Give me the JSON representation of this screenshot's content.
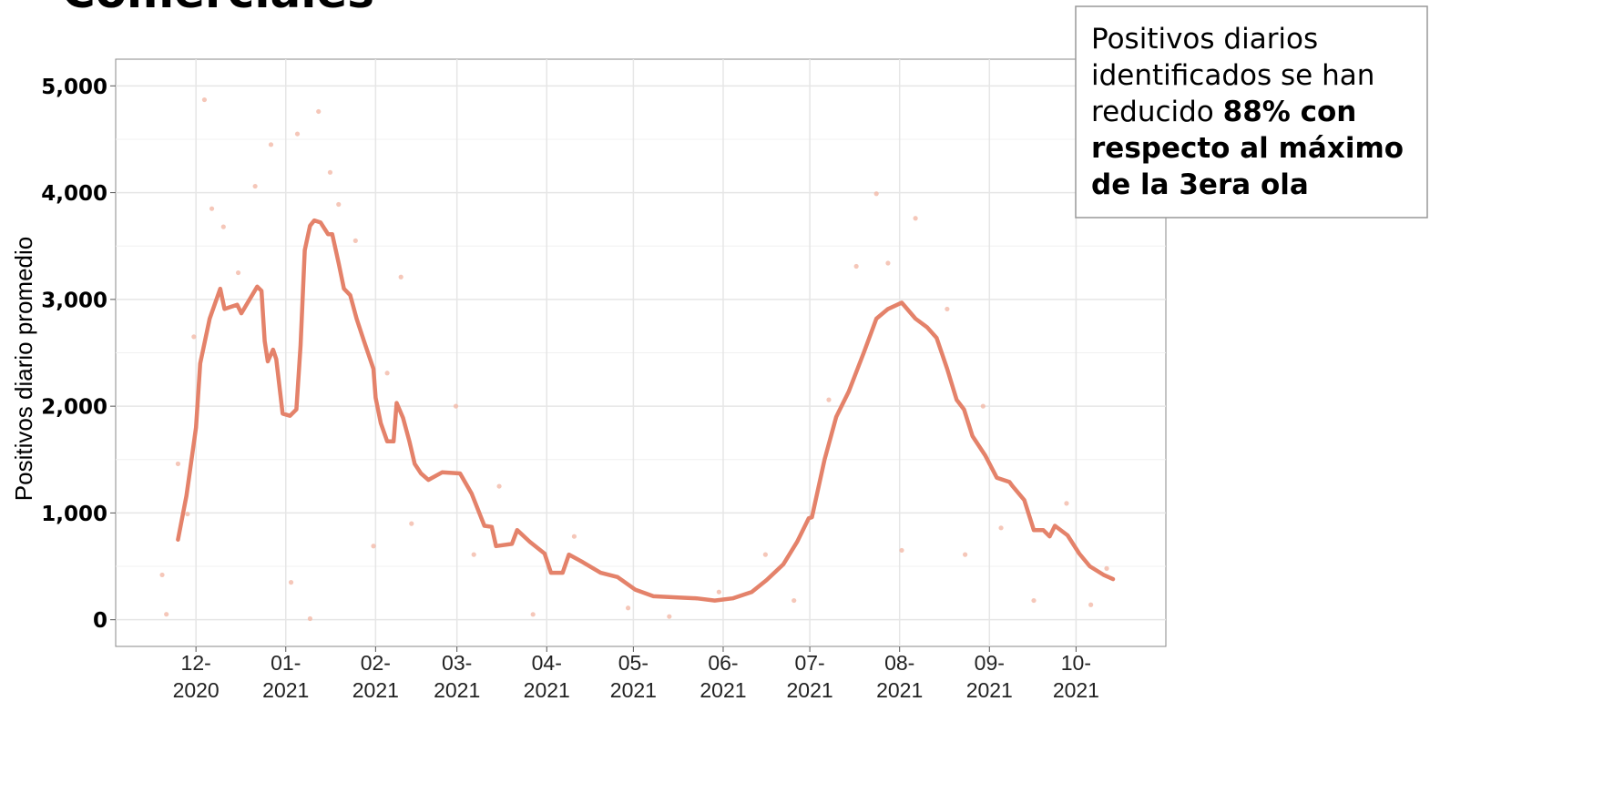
{
  "chart_data": {
    "type": "line",
    "title": "Comerciales",
    "ylabel": "Positivos diario promedio",
    "annotation_lines": [
      [
        {
          "text": "Positivos diarios",
          "bold": false
        }
      ],
      [
        {
          "text": "identificados se han",
          "bold": false
        }
      ],
      [
        {
          "text": "reducido ",
          "bold": false
        },
        {
          "text": "88% con",
          "bold": true
        }
      ],
      [
        {
          "text": "respecto al máximo",
          "bold": true
        }
      ],
      [
        {
          "text": "de la 3era ola",
          "bold": true
        }
      ]
    ],
    "xlim": [
      2020.839,
      2021.833
    ],
    "xticks": [
      {
        "value": 2020.915,
        "label": [
          "12-",
          "2020"
        ]
      },
      {
        "value": 2021.0,
        "label": [
          "01-",
          "2021"
        ]
      },
      {
        "value": 2021.085,
        "label": [
          "02-",
          "2021"
        ]
      },
      {
        "value": 2021.162,
        "label": [
          "03-",
          "2021"
        ]
      },
      {
        "value": 2021.247,
        "label": [
          "04-",
          "2021"
        ]
      },
      {
        "value": 2021.329,
        "label": [
          "05-",
          "2021"
        ]
      },
      {
        "value": 2021.414,
        "label": [
          "06-",
          "2021"
        ]
      },
      {
        "value": 2021.496,
        "label": [
          "07-",
          "2021"
        ]
      },
      {
        "value": 2021.581,
        "label": [
          "08-",
          "2021"
        ]
      },
      {
        "value": 2021.666,
        "label": [
          "09-",
          "2021"
        ]
      },
      {
        "value": 2021.748,
        "label": [
          "10-",
          "2021"
        ]
      }
    ],
    "ylim": [
      -250,
      5250
    ],
    "yticks": [
      0,
      {
        "value": 1000,
        "label": "1,000"
      },
      {
        "value": 2000,
        "label": "2,000"
      },
      {
        "value": 3000,
        "label": "3,000"
      },
      {
        "value": 4000,
        "label": "4,000"
      },
      {
        "value": 5000,
        "label": "5,000"
      }
    ],
    "yminorticks": [
      500,
      1500,
      2500,
      3500,
      4500
    ],
    "grid": true,
    "series": [
      {
        "type": "line",
        "color": "#e4826a",
        "x": [
          2020.898,
          2020.906,
          2020.915,
          2020.919,
          2020.928,
          2020.938,
          2020.942,
          2020.954,
          2020.958,
          2020.973,
          2020.977,
          2020.98,
          2020.983,
          2020.988,
          2020.991,
          2020.997,
          2021.004,
          2021.01,
          2021.014,
          2021.018,
          2021.023,
          2021.027,
          2021.033,
          2021.04,
          2021.044,
          2021.05,
          2021.055,
          2021.061,
          2021.067,
          2021.074,
          2021.083,
          2021.085,
          2021.09,
          2021.096,
          2021.102,
          2021.105,
          2021.111,
          2021.117,
          2021.122,
          2021.128,
          2021.135,
          2021.148,
          2021.165,
          2021.176,
          2021.188,
          2021.195,
          2021.199,
          2021.214,
          2021.219,
          2021.231,
          2021.245,
          2021.251,
          2021.262,
          2021.268,
          2021.281,
          2021.298,
          2021.314,
          2021.331,
          2021.348,
          2021.369,
          2021.389,
          2021.406,
          2021.423,
          2021.441,
          2021.455,
          2021.471,
          2021.484,
          2021.495,
          2021.498,
          2021.51,
          2021.521,
          2021.533,
          2021.547,
          2021.559,
          2021.57,
          2021.583,
          2021.596,
          2021.607,
          2021.616,
          2021.626,
          2021.635,
          2021.642,
          2021.65,
          2021.662,
          2021.673,
          2021.685,
          2021.688,
          2021.699,
          2021.708,
          2021.717,
          2021.723,
          2021.728,
          2021.74,
          2021.751,
          2021.761,
          2021.774,
          2021.783
        ],
        "values": [
          750,
          1160,
          1800,
          2400,
          2820,
          3100,
          2910,
          2950,
          2870,
          3120,
          3080,
          2610,
          2420,
          2530,
          2440,
          1930,
          1910,
          1970,
          2570,
          3460,
          3690,
          3740,
          3720,
          3610,
          3610,
          3340,
          3100,
          3040,
          2820,
          2610,
          2350,
          2080,
          1840,
          1670,
          1670,
          2030,
          1890,
          1670,
          1460,
          1370,
          1310,
          1380,
          1370,
          1180,
          880,
          870,
          690,
          710,
          840,
          730,
          620,
          440,
          440,
          610,
          540,
          440,
          400,
          280,
          220,
          210,
          200,
          180,
          200,
          260,
          370,
          520,
          730,
          950,
          960,
          1500,
          1900,
          2140,
          2500,
          2820,
          2910,
          2970,
          2820,
          2740,
          2640,
          2350,
          2060,
          1970,
          1720,
          1540,
          1330,
          1290,
          1250,
          1120,
          840,
          840,
          780,
          880,
          790,
          620,
          500,
          420,
          380
        ]
      },
      {
        "type": "scatter",
        "color": "#f2b9a8",
        "x": [
          2020.883,
          2020.887,
          2020.898,
          2020.907,
          2020.913,
          2020.923,
          2020.93,
          2020.941,
          2020.955,
          2020.971,
          2020.986,
          2021.005,
          2021.011,
          2021.023,
          2021.031,
          2021.042,
          2021.05,
          2021.066,
          2021.083,
          2021.096,
          2021.109,
          2021.119,
          2021.161,
          2021.178,
          2021.202,
          2021.234,
          2021.273,
          2021.324,
          2021.363,
          2021.41,
          2021.454,
          2021.481,
          2021.514,
          2021.54,
          2021.559,
          2021.57,
          2021.583,
          2021.596,
          2021.626,
          2021.643,
          2021.66,
          2021.677,
          2021.708,
          2021.739,
          2021.762,
          2021.777
        ],
        "values": [
          420,
          51,
          1460,
          990,
          2650,
          4870,
          3850,
          3680,
          3250,
          4060,
          4450,
          350,
          4550,
          10,
          4760,
          4190,
          3890,
          3550,
          690,
          2310,
          3210,
          900,
          2000,
          610,
          1250,
          50,
          780,
          110,
          30,
          260,
          610,
          180,
          2060,
          3310,
          3990,
          3340,
          650,
          3760,
          2910,
          610,
          2000,
          860,
          180,
          1090,
          140,
          480
        ]
      }
    ]
  }
}
